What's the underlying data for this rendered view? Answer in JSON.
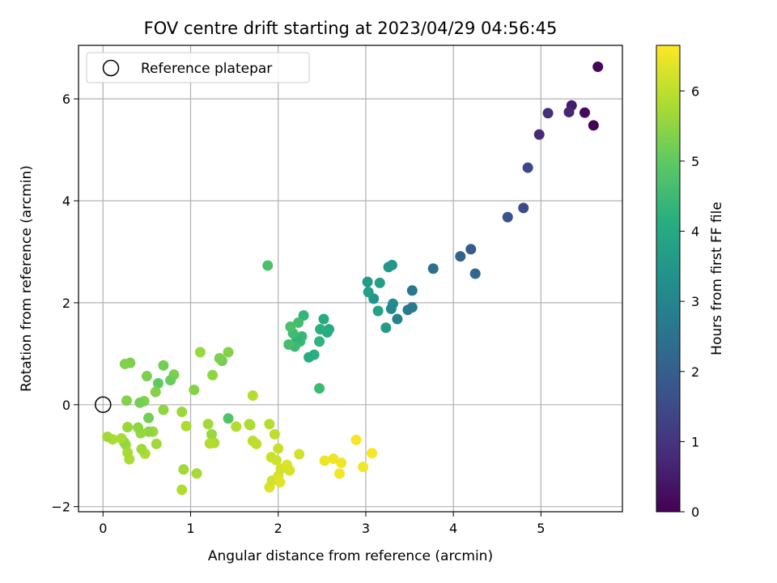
{
  "chart_data": {
    "type": "scatter",
    "title": "FOV centre drift starting at 2023/04/29 04:56:45",
    "xlabel": "Angular distance from reference (arcmin)",
    "ylabel": "Rotation from reference (arcmin)",
    "colorbar_label": "Hours from first FF file",
    "xlim": [
      -0.28,
      5.93
    ],
    "ylim": [
      -2.1,
      7.05
    ],
    "clim": [
      0,
      6.65
    ],
    "colormap": "viridis",
    "x_ticks": [
      0,
      1,
      2,
      3,
      4,
      5
    ],
    "y_ticks": [
      -2,
      0,
      2,
      4,
      6
    ],
    "colorbar_ticks": [
      0,
      1,
      2,
      3,
      4,
      5,
      6
    ],
    "grid": true,
    "legend_position": "top-left",
    "legend": [
      {
        "label": "Reference platepar",
        "marker": "open-circle",
        "x": 0,
        "y": 0
      }
    ],
    "points": [
      [
        5.65,
        6.63,
        0.1
      ],
      [
        5.6,
        5.48,
        0.05
      ],
      [
        5.5,
        5.73,
        0.2
      ],
      [
        5.35,
        5.87,
        0.5
      ],
      [
        5.32,
        5.74,
        0.7
      ],
      [
        5.08,
        5.72,
        0.9
      ],
      [
        4.98,
        5.3,
        0.8
      ],
      [
        4.85,
        4.65,
        1.4
      ],
      [
        4.8,
        3.86,
        1.5
      ],
      [
        4.62,
        3.68,
        1.65
      ],
      [
        4.25,
        2.57,
        2.2
      ],
      [
        4.2,
        3.05,
        1.9
      ],
      [
        4.08,
        2.91,
        2.1
      ],
      [
        3.77,
        2.67,
        2.4
      ],
      [
        3.53,
        2.24,
        2.6
      ],
      [
        3.53,
        1.91,
        2.8
      ],
      [
        3.48,
        1.86,
        2.7
      ],
      [
        3.36,
        1.68,
        2.95
      ],
      [
        3.31,
        1.98,
        3.2
      ],
      [
        3.29,
        1.88,
        3.1
      ],
      [
        3.3,
        2.74,
        3.4
      ],
      [
        3.26,
        2.7,
        3.5
      ],
      [
        3.23,
        1.51,
        3.6
      ],
      [
        3.16,
        2.39,
        3.7
      ],
      [
        3.14,
        1.84,
        3.8
      ],
      [
        3.09,
        2.08,
        3.5
      ],
      [
        3.03,
        2.21,
        3.7
      ],
      [
        3.02,
        2.41,
        3.6
      ],
      [
        2.58,
        1.48,
        4.0
      ],
      [
        2.56,
        1.42,
        4.1
      ],
      [
        2.52,
        1.68,
        4.05
      ],
      [
        2.48,
        1.48,
        4.2
      ],
      [
        2.47,
        1.24,
        4.3
      ],
      [
        2.47,
        0.32,
        4.5
      ],
      [
        2.41,
        0.98,
        4.2
      ],
      [
        2.35,
        0.93,
        4.1
      ],
      [
        2.29,
        1.75,
        4.35
      ],
      [
        2.27,
        1.34,
        4.4
      ],
      [
        2.25,
        1.24,
        4.45
      ],
      [
        2.23,
        1.61,
        4.6
      ],
      [
        2.21,
        1.28,
        4.3
      ],
      [
        2.19,
        1.14,
        4.5
      ],
      [
        2.17,
        1.4,
        4.55
      ],
      [
        2.14,
        1.53,
        4.7
      ],
      [
        2.12,
        1.18,
        4.6
      ],
      [
        1.88,
        2.73,
        4.7
      ],
      [
        1.43,
        1.03,
        5.4
      ],
      [
        1.43,
        -0.27,
        4.8
      ],
      [
        1.36,
        0.86,
        5.2
      ],
      [
        1.33,
        0.91,
        5.3
      ],
      [
        1.25,
        0.58,
        5.5
      ],
      [
        1.27,
        -0.75,
        5.8
      ],
      [
        1.24,
        -0.58,
        5.6
      ],
      [
        1.22,
        -0.76,
        5.85
      ],
      [
        1.2,
        -0.38,
        5.7
      ],
      [
        1.11,
        1.03,
        5.6
      ],
      [
        1.07,
        -1.35,
        5.75
      ],
      [
        1.04,
        0.29,
        5.4
      ],
      [
        0.95,
        -0.42,
        5.8
      ],
      [
        0.92,
        -1.27,
        5.7
      ],
      [
        0.9,
        -1.67,
        5.85
      ],
      [
        0.9,
        -0.14,
        5.65
      ],
      [
        0.81,
        0.59,
        5.3
      ],
      [
        0.77,
        0.48,
        5.1
      ],
      [
        0.69,
        0.77,
        5.2
      ],
      [
        0.69,
        -0.1,
        5.5
      ],
      [
        0.63,
        0.42,
        5.0
      ],
      [
        0.61,
        -0.77,
        5.7
      ],
      [
        0.6,
        0.25,
        5.4
      ],
      [
        0.57,
        -0.53,
        5.6
      ],
      [
        0.52,
        -0.26,
        5.2
      ],
      [
        0.52,
        -0.53,
        5.5
      ],
      [
        0.5,
        0.56,
        5.3
      ],
      [
        0.48,
        -0.96,
        5.8
      ],
      [
        0.47,
        0.07,
        5.4
      ],
      [
        0.44,
        -0.87,
        5.7
      ],
      [
        0.43,
        -0.56,
        5.6
      ],
      [
        0.42,
        0.04,
        5.2
      ],
      [
        0.4,
        -0.45,
        5.5
      ],
      [
        0.31,
        0.82,
        5.3
      ],
      [
        0.3,
        -1.07,
        5.8
      ],
      [
        0.28,
        -0.94,
        5.75
      ],
      [
        0.28,
        -0.44,
        5.6
      ],
      [
        0.27,
        0.08,
        5.4
      ],
      [
        0.26,
        -0.79,
        5.7
      ],
      [
        0.25,
        0.8,
        5.35
      ],
      [
        0.24,
        -0.73,
        5.55
      ],
      [
        0.21,
        -0.66,
        5.75
      ],
      [
        0.11,
        -0.68,
        5.8
      ],
      [
        0.05,
        -0.63,
        5.7
      ],
      [
        1.71,
        0.18,
        5.9
      ],
      [
        1.52,
        -0.43,
        5.9
      ],
      [
        1.67,
        -0.38,
        5.9
      ],
      [
        1.71,
        -0.71,
        5.95
      ],
      [
        1.68,
        -0.4,
        5.8
      ],
      [
        1.75,
        -0.77,
        6.0
      ],
      [
        1.9,
        -0.38,
        5.9
      ],
      [
        1.92,
        -1.03,
        6.1
      ],
      [
        1.9,
        -1.62,
        6.3
      ],
      [
        1.93,
        -1.49,
        6.2
      ],
      [
        1.96,
        -0.58,
        6.0
      ],
      [
        1.98,
        -1.09,
        6.15
      ],
      [
        2.0,
        -0.86,
        6.1
      ],
      [
        2.0,
        -1.4,
        6.3
      ],
      [
        2.02,
        -1.52,
        6.35
      ],
      [
        2.03,
        -1.26,
        6.2
      ],
      [
        2.1,
        -1.18,
        6.3
      ],
      [
        2.13,
        -1.29,
        6.25
      ],
      [
        2.24,
        -0.97,
        6.2
      ],
      [
        2.53,
        -1.1,
        6.5
      ],
      [
        2.63,
        -1.06,
        6.5
      ],
      [
        2.7,
        -1.35,
        6.55
      ],
      [
        2.72,
        -1.14,
        6.5
      ],
      [
        2.89,
        -0.69,
        6.6
      ],
      [
        2.97,
        -1.22,
        6.55
      ],
      [
        3.07,
        -0.95,
        6.6
      ]
    ]
  }
}
